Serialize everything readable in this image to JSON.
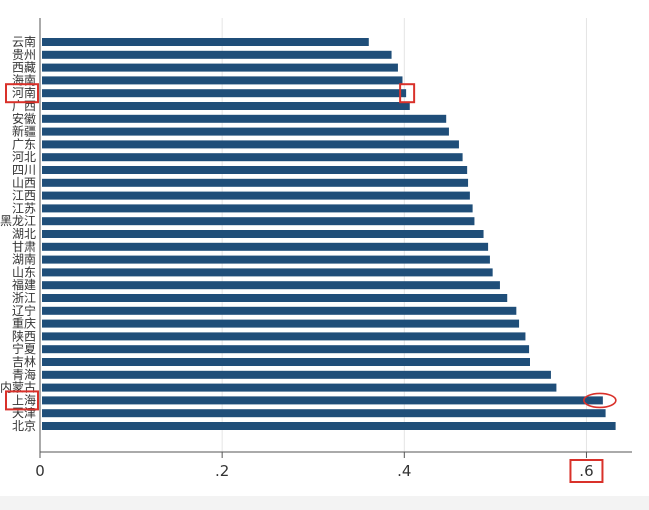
{
  "chart_data": {
    "type": "bar",
    "orientation": "horizontal",
    "title": "",
    "xlabel": "",
    "ylabel": "",
    "xlim": [
      0,
      0.65
    ],
    "xticks": [
      0,
      0.2,
      0.4,
      0.6
    ],
    "xtick_labels": [
      "0",
      ".2",
      ".4",
      ".6"
    ],
    "categories": [
      "云南",
      "贵州",
      "西藏",
      "海南",
      "河南",
      "广西",
      "安徽",
      "新疆",
      "广东",
      "河北",
      "四川",
      "山西",
      "江西",
      "江苏",
      "黑龙江",
      "湖北",
      "甘肃",
      "湖南",
      "山东",
      "福建",
      "浙江",
      "辽宁",
      "重庆",
      "陕西",
      "宁夏",
      "吉林",
      "青海",
      "内蒙古",
      "上海",
      "天津",
      "北京"
    ],
    "values": [
      0.361,
      0.386,
      0.393,
      0.398,
      0.402,
      0.406,
      0.446,
      0.449,
      0.46,
      0.464,
      0.469,
      0.47,
      0.472,
      0.475,
      0.477,
      0.487,
      0.492,
      0.494,
      0.497,
      0.505,
      0.513,
      0.523,
      0.526,
      0.533,
      0.537,
      0.538,
      0.561,
      0.567,
      0.618,
      0.621,
      0.632
    ],
    "bar_color": "#1f4e79",
    "grid": true,
    "highlight_color": "#d9312a",
    "highlights": {
      "category_labels": [
        "河南",
        "上海"
      ],
      "bar_end_box": "河南",
      "bar_end_ellipse": "上海",
      "tick_label": ".6"
    }
  }
}
